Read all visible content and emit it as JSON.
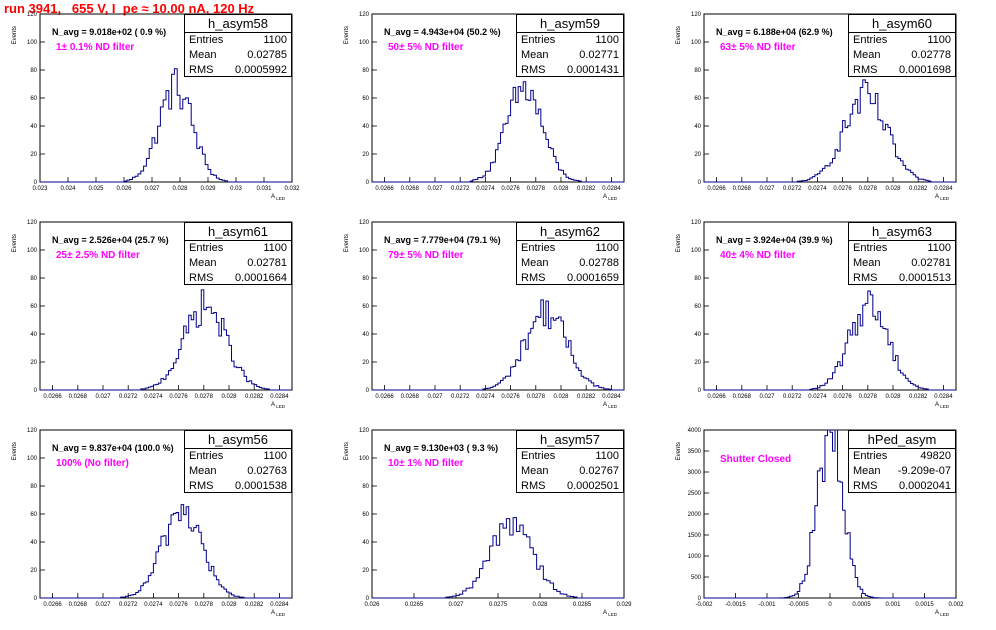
{
  "page": {
    "title": "run 3941,   655 V, I_pe ≈ 10.00 nA, 120 Hz"
  },
  "chart_data": [
    {
      "type": "bar",
      "hist_name": "h_asym58",
      "navg": "N_avg = 9.018e+02 ( 0.9 %)",
      "filter_label": "1± 0.1% ND filter",
      "stats": {
        "entries": "1100",
        "mean": "0.02785",
        "rms": "0.0005992"
      },
      "stat_labels": {
        "entries": "Entries",
        "mean": "Mean",
        "rms": "RMS"
      },
      "ylabel": "Events",
      "xlabel": "A_LED",
      "xlim": [
        0.023,
        0.032
      ],
      "ylim": [
        0,
        120
      ],
      "xticks": [
        0.023,
        0.024,
        0.025,
        0.026,
        0.027,
        0.028,
        0.029,
        0.03,
        0.031,
        0.032
      ],
      "xtick_labels": [
        "0.023",
        "0.024",
        "0.025",
        "0.026",
        "0.027",
        "0.028",
        "0.029",
        "0.03",
        "0.031",
        "0.032"
      ],
      "yticks": [
        0,
        20,
        40,
        60,
        80,
        100,
        120
      ],
      "bin_width": 0.0001,
      "center": 0.02785,
      "sigma": 0.0006,
      "peak": 68
    },
    {
      "type": "bar",
      "hist_name": "h_asym59",
      "navg": "N_avg = 4.943e+04 (50.2 %)",
      "filter_label": "50± 5% ND filter",
      "stats": {
        "entries": "1100",
        "mean": "0.02771",
        "rms": "0.0001431"
      },
      "stat_labels": {
        "entries": "Entries",
        "mean": "Mean",
        "rms": "RMS"
      },
      "ylabel": "Events",
      "xlabel": "A_LED",
      "xlim": [
        0.0265,
        0.0285
      ],
      "ylim": [
        0,
        120
      ],
      "xticks": [
        0.0266,
        0.0268,
        0.027,
        0.0272,
        0.0274,
        0.0276,
        0.0278,
        0.028,
        0.0282,
        0.0284
      ],
      "xtick_labels": [
        "0.0266",
        "0.0268",
        "0.027",
        "0.0272",
        "0.0274",
        "0.0276",
        "0.0278",
        "0.028",
        "0.0282",
        "0.0284"
      ],
      "yticks": [
        0,
        20,
        40,
        60,
        80,
        100,
        120
      ],
      "bin_width": 2e-05,
      "center": 0.02771,
      "sigma": 0.000143,
      "peak": 66
    },
    {
      "type": "bar",
      "hist_name": "h_asym60",
      "navg": "N_avg = 6.188e+04 (62.9 %)",
      "filter_label": "63± 5% ND filter",
      "stats": {
        "entries": "1100",
        "mean": "0.02778",
        "rms": "0.0001698"
      },
      "stat_labels": {
        "entries": "Entries",
        "mean": "Mean",
        "rms": "RMS"
      },
      "ylabel": "Events",
      "xlabel": "A_LED",
      "xlim": [
        0.0265,
        0.0285
      ],
      "ylim": [
        0,
        120
      ],
      "xticks": [
        0.0266,
        0.0268,
        0.027,
        0.0272,
        0.0274,
        0.0276,
        0.0278,
        0.028,
        0.0282,
        0.0284
      ],
      "xtick_labels": [
        "0.0266",
        "0.0268",
        "0.027",
        "0.0272",
        "0.0274",
        "0.0276",
        "0.0278",
        "0.028",
        "0.0282",
        "0.0284"
      ],
      "yticks": [
        0,
        20,
        40,
        60,
        80,
        100,
        120
      ],
      "bin_width": 2e-05,
      "center": 0.02778,
      "sigma": 0.00017,
      "peak": 60
    },
    {
      "type": "bar",
      "hist_name": "h_asym61",
      "navg": "N_avg = 2.526e+04 (25.7 %)",
      "filter_label": "25± 2.5% ND filter",
      "stats": {
        "entries": "1100",
        "mean": "0.02781",
        "rms": "0.0001664"
      },
      "stat_labels": {
        "entries": "Entries",
        "mean": "Mean",
        "rms": "RMS"
      },
      "ylabel": "Events",
      "xlabel": "A_LED",
      "xlim": [
        0.0265,
        0.0285
      ],
      "ylim": [
        0,
        120
      ],
      "xticks": [
        0.0266,
        0.0268,
        0.027,
        0.0272,
        0.0274,
        0.0276,
        0.0278,
        0.028,
        0.0282,
        0.0284
      ],
      "xtick_labels": [
        "0.0266",
        "0.0268",
        "0.027",
        "0.0272",
        "0.0274",
        "0.0276",
        "0.0278",
        "0.028",
        "0.0282",
        "0.0284"
      ],
      "yticks": [
        0,
        20,
        40,
        60,
        80,
        100,
        120
      ],
      "bin_width": 2e-05,
      "center": 0.02781,
      "sigma": 0.000166,
      "peak": 60
    },
    {
      "type": "bar",
      "hist_name": "h_asym62",
      "navg": "N_avg = 7.779e+04 (79.1 %)",
      "filter_label": "79± 5% ND filter",
      "stats": {
        "entries": "1100",
        "mean": "0.02788",
        "rms": "0.0001659"
      },
      "stat_labels": {
        "entries": "Entries",
        "mean": "Mean",
        "rms": "RMS"
      },
      "ylabel": "Events",
      "xlabel": "A_LED",
      "xlim": [
        0.0265,
        0.0285
      ],
      "ylim": [
        0,
        120
      ],
      "xticks": [
        0.0266,
        0.0268,
        0.027,
        0.0272,
        0.0274,
        0.0276,
        0.0278,
        0.028,
        0.0282,
        0.0284
      ],
      "xtick_labels": [
        "0.0266",
        "0.0268",
        "0.027",
        "0.0272",
        "0.0274",
        "0.0276",
        "0.0278",
        "0.028",
        "0.0282",
        "0.0284"
      ],
      "yticks": [
        0,
        20,
        40,
        60,
        80,
        100,
        120
      ],
      "bin_width": 2e-05,
      "center": 0.02788,
      "sigma": 0.000166,
      "peak": 56
    },
    {
      "type": "bar",
      "hist_name": "h_asym63",
      "navg": "N_avg = 3.924e+04 (39.9 %)",
      "filter_label": "40± 4% ND filter",
      "stats": {
        "entries": "1100",
        "mean": "0.02781",
        "rms": "0.0001513"
      },
      "stat_labels": {
        "entries": "Entries",
        "mean": "Mean",
        "rms": "RMS"
      },
      "ylabel": "Events",
      "xlabel": "A_LED",
      "xlim": [
        0.0265,
        0.0285
      ],
      "ylim": [
        0,
        120
      ],
      "xticks": [
        0.0266,
        0.0268,
        0.027,
        0.0272,
        0.0274,
        0.0276,
        0.0278,
        0.028,
        0.0282,
        0.0284
      ],
      "xtick_labels": [
        "0.0266",
        "0.0268",
        "0.027",
        "0.0272",
        "0.0274",
        "0.0276",
        "0.0278",
        "0.028",
        "0.0282",
        "0.0284"
      ],
      "yticks": [
        0,
        20,
        40,
        60,
        80,
        100,
        120
      ],
      "bin_width": 2e-05,
      "center": 0.02781,
      "sigma": 0.000151,
      "peak": 62
    },
    {
      "type": "bar",
      "hist_name": "h_asym56",
      "navg": "N_avg = 9.837e+04 (100.0 %)",
      "filter_label": "100% (No filter)",
      "stats": {
        "entries": "1100",
        "mean": "0.02763",
        "rms": "0.0001538"
      },
      "stat_labels": {
        "entries": "Entries",
        "mean": "Mean",
        "rms": "RMS"
      },
      "ylabel": "Events",
      "xlabel": "A_LED",
      "xlim": [
        0.0265,
        0.0285
      ],
      "ylim": [
        0,
        120
      ],
      "xticks": [
        0.0266,
        0.0268,
        0.027,
        0.0272,
        0.0274,
        0.0276,
        0.0278,
        0.028,
        0.0282,
        0.0284
      ],
      "xtick_labels": [
        "0.0266",
        "0.0268",
        "0.027",
        "0.0272",
        "0.0274",
        "0.0276",
        "0.0278",
        "0.028",
        "0.0282",
        "0.0284"
      ],
      "yticks": [
        0,
        20,
        40,
        60,
        80,
        100,
        120
      ],
      "bin_width": 2e-05,
      "center": 0.02763,
      "sigma": 0.000154,
      "peak": 64
    },
    {
      "type": "bar",
      "hist_name": "h_asym57",
      "navg": "N_avg = 9.130e+03 ( 9.3 %)",
      "filter_label": "10± 1% ND filter",
      "stats": {
        "entries": "1100",
        "mean": "0.02767",
        "rms": "0.0002501"
      },
      "stat_labels": {
        "entries": "Entries",
        "mean": "Mean",
        "rms": "RMS"
      },
      "ylabel": "Events",
      "xlabel": "A_LED",
      "xlim": [
        0.026,
        0.029
      ],
      "ylim": [
        0,
        120
      ],
      "xticks": [
        0.026,
        0.0265,
        0.027,
        0.0275,
        0.028,
        0.0285,
        0.029
      ],
      "xtick_labels": [
        "0.026",
        "0.0265",
        "0.027",
        "0.0275",
        "0.028",
        "0.0285",
        "0.029"
      ],
      "yticks": [
        0,
        20,
        40,
        60,
        80,
        100,
        120
      ],
      "bin_width": 4e-05,
      "center": 0.02767,
      "sigma": 0.00025,
      "peak": 56
    },
    {
      "type": "bar",
      "hist_name": "hPed_asym",
      "navg": "",
      "filter_label": "Shutter Closed",
      "stats": {
        "entries": "49820",
        "mean": "-9.209e-07",
        "rms": "0.0002041"
      },
      "stat_labels": {
        "entries": "Entries",
        "mean": "Mean",
        "rms": "RMS"
      },
      "ylabel": "Events",
      "xlabel": "A_LED",
      "xlim": [
        -0.002,
        0.002
      ],
      "ylim": [
        0,
        4000
      ],
      "xticks": [
        -0.002,
        -0.0015,
        -0.001,
        -0.0005,
        0,
        0.0005,
        0.001,
        0.0015,
        0.002
      ],
      "xtick_labels": [
        "-0.002",
        "-0.0015",
        "-0.001",
        "-0.0005",
        "0",
        "0.0005",
        "0.001",
        "0.0015",
        "0.002"
      ],
      "yticks": [
        0,
        500,
        1000,
        1500,
        2000,
        2500,
        3000,
        3500,
        4000
      ],
      "bin_width": 4e-05,
      "center": 0.0,
      "sigma": 0.000204,
      "peak": 3850
    }
  ]
}
